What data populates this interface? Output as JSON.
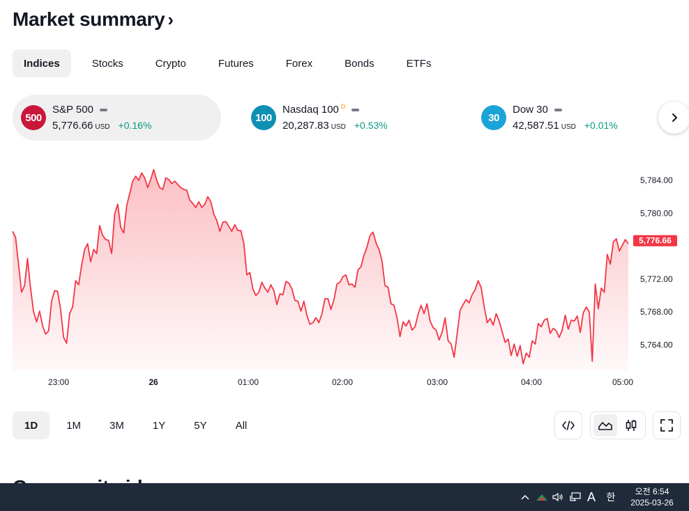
{
  "header": {
    "title": "Market summary",
    "chevron": "›"
  },
  "tabs": [
    {
      "label": "Indices"
    },
    {
      "label": "Stocks"
    },
    {
      "label": "Crypto"
    },
    {
      "label": "Futures"
    },
    {
      "label": "Forex"
    },
    {
      "label": "Bonds"
    },
    {
      "label": "ETFs"
    }
  ],
  "symbols": [
    {
      "badge": "500",
      "badge_color": "#c9173a",
      "name": "S&P 500",
      "sup": "",
      "price": "5,776.66",
      "currency": "USD",
      "change": "+0.16%"
    },
    {
      "badge": "100",
      "badge_color": "#0e8fb4",
      "name": "Nasdaq 100",
      "sup": "D",
      "price": "20,287.83",
      "currency": "USD",
      "change": "+0.53%"
    },
    {
      "badge": "30",
      "badge_color": "#1aa3d6",
      "name": "Dow 30",
      "sup": "",
      "price": "42,587.51",
      "currency": "USD",
      "change": "+0.01%"
    }
  ],
  "chart_data": {
    "type": "area",
    "series": [
      {
        "values": [
          5777.8,
          5777.1,
          5773.8,
          5770.4,
          5771.2,
          5774.5,
          5770.9,
          5768.0,
          5766.8,
          5768.1,
          5766.3,
          5765.3,
          5765.7,
          5769.3,
          5770.6,
          5770.5,
          5768.3,
          5764.9,
          5764.2,
          5767.8,
          5768.6,
          5771.8,
          5771.3,
          5773.7,
          5775.6,
          5776.3,
          5774.1,
          5775.6,
          5775.1,
          5778.5,
          5777.3,
          5776.8,
          5776.7,
          5775.1,
          5779.9,
          5781.1,
          5778.3,
          5777.6,
          5780.9,
          5782.4,
          5783.9,
          5784.5,
          5784.0,
          5784.9,
          5784.3,
          5783.1,
          5784.1,
          5785.3,
          5784.0,
          5783.1,
          5782.9,
          5784.3,
          5784.1,
          5783.6,
          5783.9,
          5783.5,
          5783.1,
          5782.9,
          5782.8,
          5781.6,
          5781.2,
          5780.7,
          5781.4,
          5780.7,
          5781.1,
          5782.0,
          5781.4,
          5779.9,
          5779.1,
          5777.8,
          5778.9,
          5779.0,
          5778.4,
          5777.8,
          5778.6,
          5777.9,
          5777.9,
          5776.3,
          5772.5,
          5772.8,
          5770.8,
          5770.0,
          5770.4,
          5771.6,
          5770.9,
          5770.4,
          5771.3,
          5770.6,
          5768.9,
          5770.2,
          5770.1,
          5771.7,
          5771.5,
          5770.8,
          5769.4,
          5769.3,
          5768.1,
          5769.3,
          5767.6,
          5766.5,
          5766.7,
          5767.3,
          5766.7,
          5767.8,
          5769.6,
          5769.6,
          5768.3,
          5769.5,
          5771.4,
          5771.6,
          5772.3,
          5772.5,
          5771.3,
          5771.4,
          5771.0,
          5773.1,
          5773.5,
          5774.9,
          5775.9,
          5777.3,
          5777.7,
          5776.4,
          5775.6,
          5774.2,
          5771.2,
          5771.0,
          5769.0,
          5768.8,
          5767.3,
          5765.0,
          5766.8,
          5766.3,
          5767.0,
          5765.8,
          5766.2,
          5767.7,
          5768.8,
          5767.8,
          5769.0,
          5766.9,
          5766.1,
          5765.8,
          5764.6,
          5765.5,
          5767.3,
          5764.5,
          5764.1,
          5762.5,
          5765.3,
          5768.2,
          5768.9,
          5769.5,
          5769.1,
          5770.1,
          5770.7,
          5771.8,
          5771.0,
          5768.7,
          5766.7,
          5767.2,
          5766.4,
          5767.8,
          5766.9,
          5765.6,
          5764.3,
          5764.7,
          5762.7,
          5764.1,
          5762.6,
          5763.9,
          5761.7,
          5763.0,
          5762.5,
          5764.5,
          5764.1,
          5766.6,
          5766.2,
          5767.0,
          5767.2,
          5765.4,
          5766.0,
          5765.7,
          5764.9,
          5765.8,
          5767.6,
          5765.9,
          5767.0,
          5766.9,
          5767.5,
          5765.5,
          5767.9,
          5768.6,
          5768.0,
          5762.0,
          5771.4,
          5768.4,
          5770.9,
          5770.4,
          5775.0,
          5773.8,
          5776.5,
          5776.9,
          5775.4,
          5776.1,
          5776.8,
          5776.3
        ],
        "color": "#f23645"
      }
    ],
    "x_ticks": [
      "23:00",
      "26",
      "01:00",
      "02:00",
      "03:00",
      "04:00",
      "05:00"
    ],
    "y_ticks": [
      "5,784.00",
      "5,780.00",
      "5,772.00",
      "5,768.00",
      "5,764.00"
    ],
    "y_tick_values": [
      5784,
      5780,
      5772,
      5768,
      5764
    ],
    "ylim": [
      5760.9,
      5787.3
    ],
    "last_label": "5,776.66",
    "last_value": 5776.66,
    "grid": false
  },
  "ranges": [
    {
      "label": "1D"
    },
    {
      "label": "1M"
    },
    {
      "label": "3M"
    },
    {
      "label": "1Y"
    },
    {
      "label": "5Y"
    },
    {
      "label": "All"
    }
  ],
  "tools": {
    "embed_icon": "code-icon",
    "line_icon": "area-chart-icon",
    "candle_icon": "candles-icon",
    "fullscreen_icon": "fullscreen-icon"
  },
  "next_section": {
    "title": "Community ideas"
  },
  "taskbar": {
    "ime_a": "A",
    "ime_han": "한",
    "time": "오전 6:54",
    "date": "2025-03-26"
  }
}
